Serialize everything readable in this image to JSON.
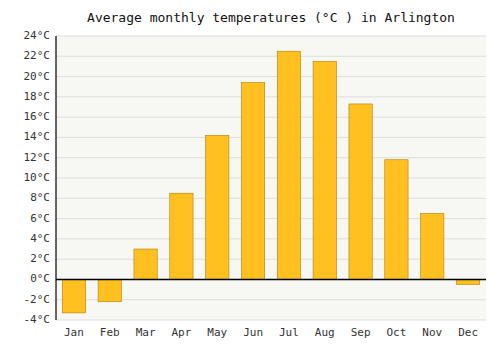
{
  "chart_data": {
    "type": "bar",
    "title": "Average monthly temperatures (°C ) in Arlington",
    "categories": [
      "Jan",
      "Feb",
      "Mar",
      "Apr",
      "May",
      "Jun",
      "Jul",
      "Aug",
      "Sep",
      "Oct",
      "Nov",
      "Dec"
    ],
    "values": [
      -3.3,
      -2.2,
      3.0,
      8.5,
      14.2,
      19.4,
      22.5,
      21.5,
      17.3,
      11.8,
      6.5,
      -0.5
    ],
    "color": "#FFC020",
    "ylim": [
      -4,
      24
    ],
    "yticks": [
      {
        "value": -4,
        "label": "-4°C"
      },
      {
        "value": -2,
        "label": "-2°C"
      },
      {
        "value": 0,
        "label": "0°C"
      },
      {
        "value": 2,
        "label": "2°C"
      },
      {
        "value": 4,
        "label": "4°C"
      },
      {
        "value": 6,
        "label": "6°C"
      },
      {
        "value": 8,
        "label": "8°C"
      },
      {
        "value": 10,
        "label": "10°C"
      },
      {
        "value": 12,
        "label": "12°C"
      },
      {
        "value": 14,
        "label": "14°C"
      },
      {
        "value": 16,
        "label": "16°C"
      },
      {
        "value": 18,
        "label": "18°C"
      },
      {
        "value": 20,
        "label": "20°C"
      },
      {
        "value": 22,
        "label": "22°C"
      },
      {
        "value": 24,
        "label": "24°C"
      }
    ],
    "grid": true
  }
}
